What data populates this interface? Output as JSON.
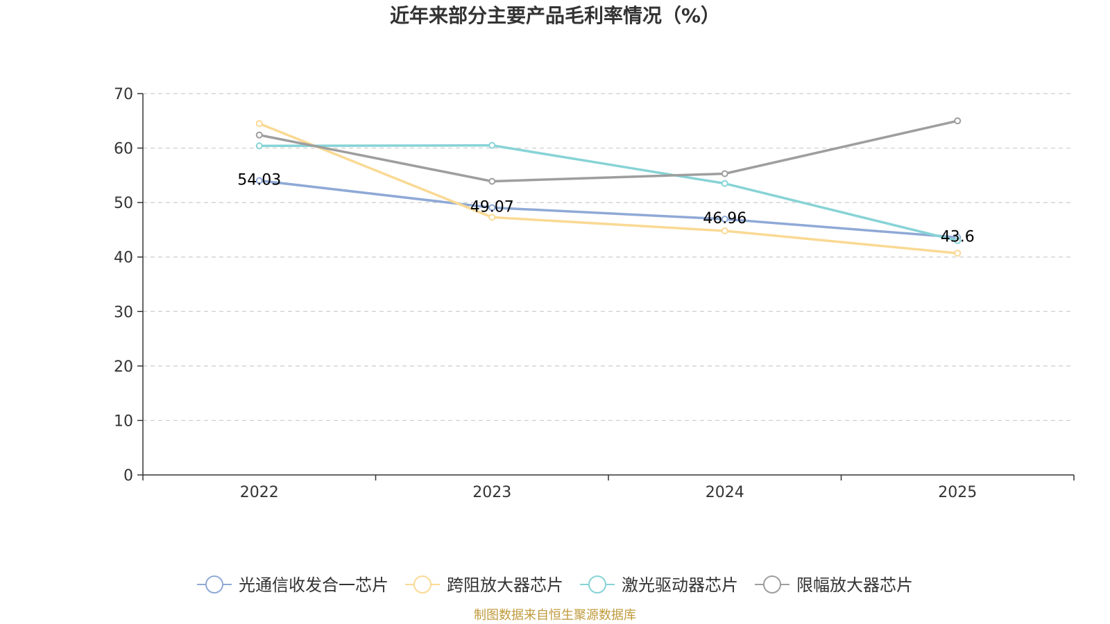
{
  "chart_data": {
    "type": "line",
    "title": "近年来部分主要产品毛利率情况（%）",
    "categories": [
      "2022",
      "2023",
      "2024",
      "2025"
    ],
    "ylim": [
      0,
      70
    ],
    "yticks": [
      "0",
      "10",
      "20",
      "30",
      "40",
      "50",
      "60",
      "70"
    ],
    "grid": true,
    "legend_position": "bottom",
    "series": [
      {
        "name": "光通信收发合一芯片",
        "color": "#8fa9d6",
        "values": [
          54.03,
          49.07,
          46.96,
          43.6
        ],
        "labels": [
          "54.03",
          "49.07",
          "46.96",
          "43.6"
        ]
      },
      {
        "name": "跨阻放大器芯片",
        "color": "#fad994",
        "values": [
          64.5,
          47.3,
          44.8,
          40.7
        ],
        "labels": []
      },
      {
        "name": "激光驱动器芯片",
        "color": "#87d3d6",
        "values": [
          60.4,
          60.5,
          53.5,
          43.0
        ],
        "labels": []
      },
      {
        "name": "限幅放大器芯片",
        "color": "#9e9e9e",
        "values": [
          62.4,
          53.9,
          55.3,
          65.0
        ],
        "labels": []
      }
    ]
  },
  "footer": {
    "source": "制图数据来自恒生聚源数据库"
  }
}
